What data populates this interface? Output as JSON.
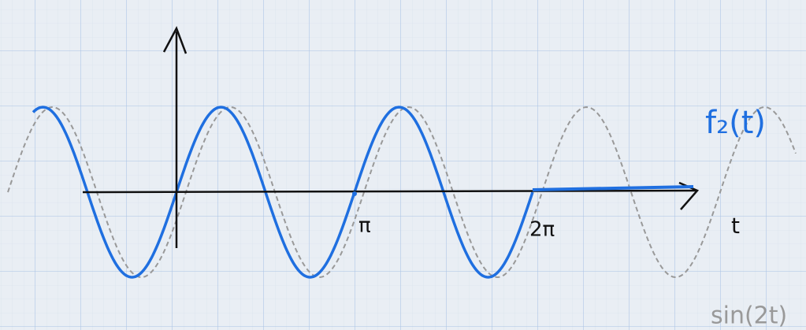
{
  "labels": {
    "curve": "f₂(t)",
    "pi": "π",
    "two_pi": "2π",
    "axis": "t",
    "reference": "sin(2t)"
  }
}
